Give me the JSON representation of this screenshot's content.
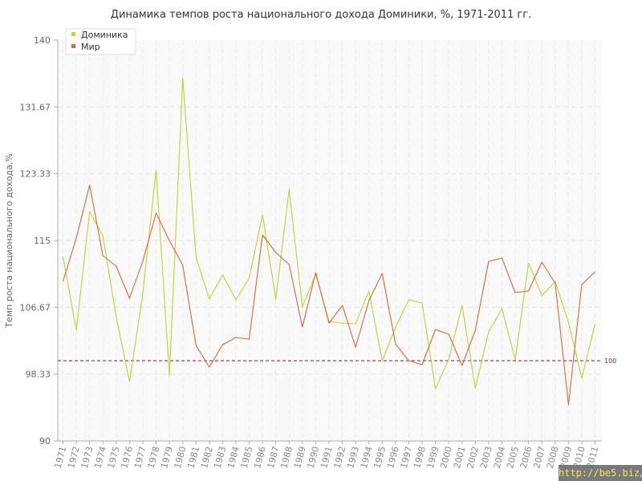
{
  "chart_data": {
    "type": "line",
    "title": "Динамика темпов роста национального дохода Доминики, %, 1971-2011 гг.",
    "xlabel": "",
    "ylabel": "Темп роста национального дохода,%",
    "ylim": [
      90,
      140
    ],
    "yticks": [
      "90",
      "98.33",
      "106.67",
      "115",
      "123.33",
      "131.67",
      "140"
    ],
    "x": [
      1971,
      1972,
      1973,
      1974,
      1975,
      1976,
      1977,
      1978,
      1979,
      1980,
      1981,
      1982,
      1983,
      1984,
      1985,
      1986,
      1987,
      1988,
      1989,
      1990,
      1991,
      1992,
      1993,
      1994,
      1995,
      1996,
      1997,
      1998,
      1999,
      2000,
      2001,
      2002,
      2003,
      2004,
      2005,
      2006,
      2007,
      2008,
      2009,
      2010,
      2011
    ],
    "reference_line": {
      "value": 100,
      "label": "100",
      "color": "#7a1f2b"
    },
    "legend_position": "top-left",
    "grid": true,
    "series": [
      {
        "name": "Доминика",
        "color": "#b8d436",
        "values": [
          113,
          103.8,
          118.6,
          115.6,
          105.5,
          97.4,
          108.3,
          123.8,
          98.1,
          135.3,
          112.9,
          107.7,
          110.7,
          107.6,
          110.3,
          118.2,
          107.7,
          121.4,
          106.7,
          110.8,
          104.9,
          104.7,
          104.6,
          108.7,
          100,
          104.2,
          107.6,
          107.2,
          96.5,
          100.2,
          106.9,
          96.6,
          103.6,
          106.5,
          100.1,
          112.2,
          108.1,
          109.9,
          104.8,
          97.8,
          104.6
        ]
      },
      {
        "name": "Мир",
        "color": "#d9673a",
        "values": [
          109.9,
          115.3,
          121.9,
          113.1,
          111.8,
          107.8,
          112.4,
          118.4,
          115,
          111.9,
          101.9,
          99.2,
          102,
          102.9,
          102.7,
          115.7,
          113.5,
          112,
          104.2,
          111,
          104.7,
          106.9,
          101.7,
          107.5,
          110.9,
          102.1,
          100,
          99.5,
          103.9,
          103.3,
          99.4,
          103.8,
          112.4,
          112.8,
          108.5,
          108.7,
          112.3,
          109.7,
          94.5,
          109.5,
          111.1
        ]
      }
    ]
  },
  "watermark": "http://be5.biz/"
}
